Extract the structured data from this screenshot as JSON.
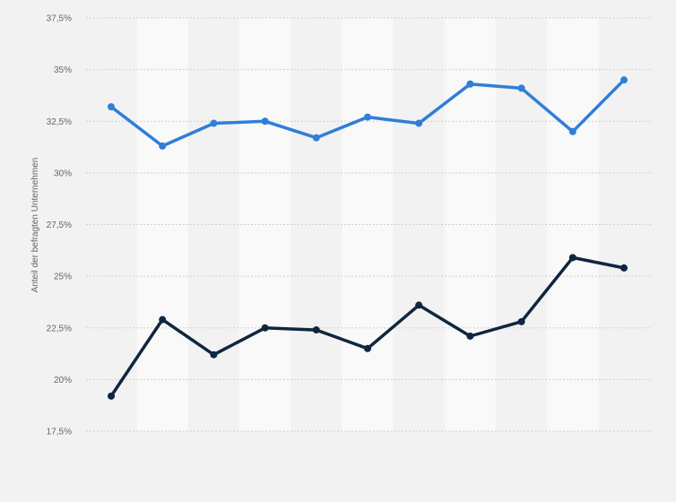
{
  "chart_data": {
    "type": "line",
    "title": "",
    "xlabel": "",
    "ylabel": "Anteil der befragten Unternehmen",
    "ylim": [
      17.5,
      37.5
    ],
    "yticks": [
      17.5,
      20,
      22.5,
      25,
      27.5,
      30,
      32.5,
      35,
      37.5
    ],
    "ytick_labels": [
      "17,5%",
      "20%",
      "22,5%",
      "25%",
      "27,5%",
      "30%",
      "32,5%",
      "35%",
      "37,5%"
    ],
    "x": [
      1,
      2,
      3,
      4,
      5,
      6,
      7,
      8,
      9,
      10,
      11
    ],
    "grid": true,
    "legend": "none",
    "series": [
      {
        "color": "#2f7ed8",
        "values": [
          33.2,
          31.3,
          32.4,
          32.5,
          31.7,
          32.7,
          32.4,
          34.3,
          34.1,
          32.0,
          34.5
        ]
      },
      {
        "color": "#10263f",
        "values": [
          19.2,
          22.9,
          21.2,
          22.5,
          22.4,
          21.5,
          23.6,
          22.1,
          22.8,
          25.9,
          25.4
        ]
      }
    ]
  }
}
